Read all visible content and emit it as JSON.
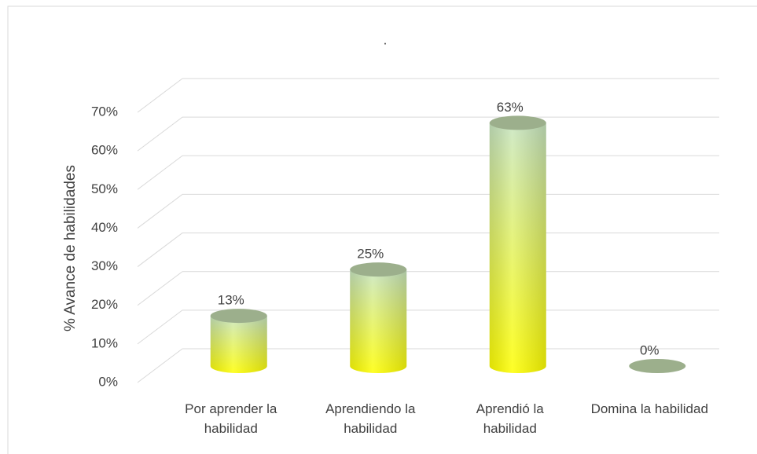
{
  "chart_data": {
    "type": "bar3d_cylinder",
    "title": ".",
    "y_label": "% Avance de habilidades",
    "categories": [
      "Por aprender la habilidad",
      "Aprendiendo la habilidad",
      "Aprendió la habilidad",
      "Domina la habilidad"
    ],
    "values": [
      13,
      25,
      63,
      0
    ],
    "value_labels": [
      "13%",
      "25%",
      "63%",
      "0%"
    ],
    "color": "#ffff00",
    "top_color": "#c8e6c0",
    "ylim": [
      0,
      70
    ],
    "yticks": [
      {
        "value": 0,
        "label": "0%"
      },
      {
        "value": 10,
        "label": "10%"
      },
      {
        "value": 20,
        "label": "20%"
      },
      {
        "value": 30,
        "label": "30%"
      },
      {
        "value": 40,
        "label": "40%"
      },
      {
        "value": 50,
        "label": "50%"
      },
      {
        "value": 60,
        "label": "60%"
      },
      {
        "value": 70,
        "label": "70%"
      }
    ],
    "grid": true
  }
}
